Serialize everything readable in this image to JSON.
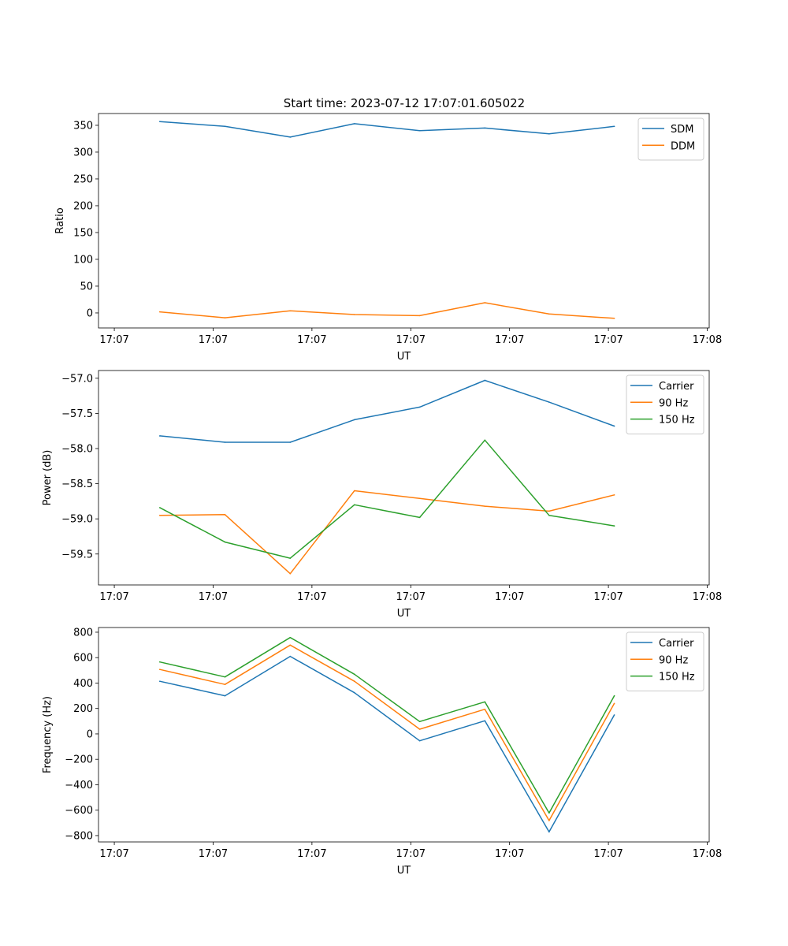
{
  "figure_title": "Start time: 2023-07-12 17:07:01.605022",
  "colors": {
    "blue": "#1f77b4",
    "orange": "#ff7f0e",
    "green": "#2ca02c"
  },
  "chart_data": [
    {
      "type": "line",
      "title": "Start time: 2023-07-12 17:07:01.605022",
      "xlabel": "UT",
      "ylabel": "Ratio",
      "x_seconds_after_17_07_00": [
        4.6,
        11.2,
        17.8,
        24.3,
        30.9,
        37.5,
        44.0,
        50.6
      ],
      "xlim": [
        -1.6,
        60.2
      ],
      "xticks": [
        0,
        10,
        20,
        30,
        40,
        50,
        60
      ],
      "xtick_labels": [
        "17:07",
        "17:07",
        "17:07",
        "17:07",
        "17:07",
        "17:07",
        "17:08"
      ],
      "ylim": [
        -28,
        372
      ],
      "yticks": [
        0,
        50,
        100,
        150,
        200,
        250,
        300,
        350
      ],
      "ytick_labels": [
        "0",
        "50",
        "100",
        "150",
        "200",
        "250",
        "300",
        "350"
      ],
      "legend": "top-right",
      "series": [
        {
          "name": "SDM",
          "color": "#1f77b4",
          "values": [
            357,
            348,
            328,
            353,
            340,
            345,
            334,
            348
          ]
        },
        {
          "name": "DDM",
          "color": "#ff7f0e",
          "values": [
            2,
            -9,
            4,
            -3,
            -5,
            19,
            -2,
            -10
          ]
        }
      ]
    },
    {
      "type": "line",
      "title": "",
      "xlabel": "UT",
      "ylabel": "Power (dB)",
      "x_seconds_after_17_07_00": [
        4.6,
        11.2,
        17.8,
        24.3,
        30.9,
        37.5,
        44.0,
        50.6
      ],
      "xlim": [
        -1.6,
        60.2
      ],
      "xticks": [
        0,
        10,
        20,
        30,
        40,
        50,
        60
      ],
      "xtick_labels": [
        "17:07",
        "17:07",
        "17:07",
        "17:07",
        "17:07",
        "17:07",
        "17:08"
      ],
      "ylim": [
        -59.94,
        -56.89
      ],
      "yticks": [
        -59.5,
        -59.0,
        -58.5,
        -58.0,
        -57.5,
        -57.0
      ],
      "ytick_labels": [
        "−59.5",
        "−59.0",
        "−58.5",
        "−58.0",
        "−57.5",
        "−57.0"
      ],
      "legend": "top-right",
      "series": [
        {
          "name": "Carrier",
          "color": "#1f77b4",
          "values": [
            -57.82,
            -57.91,
            -57.91,
            -57.59,
            -57.41,
            -57.03,
            -57.34,
            -57.68
          ]
        },
        {
          "name": "90 Hz",
          "color": "#ff7f0e",
          "values": [
            -58.95,
            -58.94,
            -59.78,
            -58.6,
            -58.71,
            -58.82,
            -58.89,
            -58.66
          ]
        },
        {
          "name": "150 Hz",
          "color": "#2ca02c",
          "values": [
            -58.84,
            -59.33,
            -59.56,
            -58.8,
            -58.98,
            -57.88,
            -58.95,
            -59.1
          ]
        }
      ]
    },
    {
      "type": "line",
      "title": "",
      "xlabel": "UT",
      "ylabel": "Frequency (Hz)",
      "x_seconds_after_17_07_00": [
        4.6,
        11.2,
        17.8,
        24.3,
        30.9,
        37.5,
        44.0,
        50.6
      ],
      "xlim": [
        -1.6,
        60.2
      ],
      "xticks": [
        0,
        10,
        20,
        30,
        40,
        50,
        60
      ],
      "xtick_labels": [
        "17:07",
        "17:07",
        "17:07",
        "17:07",
        "17:07",
        "17:07",
        "17:08"
      ],
      "ylim": [
        -850,
        837
      ],
      "yticks": [
        -800,
        -600,
        -400,
        -200,
        0,
        200,
        400,
        600,
        800
      ],
      "ytick_labels": [
        "−800",
        "−600",
        "−400",
        "−200",
        "0",
        "200",
        "400",
        "600",
        "800"
      ],
      "legend": "top-right",
      "series": [
        {
          "name": "Carrier",
          "color": "#1f77b4",
          "values": [
            414,
            300,
            610,
            324,
            -54,
            103,
            -771,
            149
          ]
        },
        {
          "name": "90 Hz",
          "color": "#ff7f0e",
          "values": [
            507,
            389,
            699,
            414,
            37,
            194,
            -682,
            240
          ]
        },
        {
          "name": "150 Hz",
          "color": "#2ca02c",
          "values": [
            566,
            448,
            758,
            469,
            97,
            252,
            -622,
            300
          ]
        }
      ]
    }
  ]
}
